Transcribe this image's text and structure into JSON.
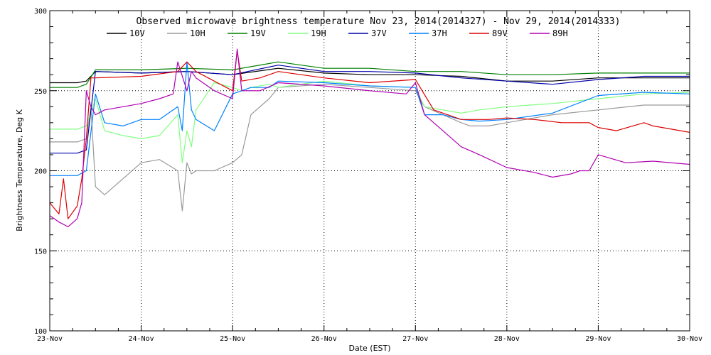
{
  "chart_data": {
    "type": "line",
    "title": "Observed microwave brightness temperature Nov 23, 2014(2014327) - Nov 29, 2014(2014333)",
    "xlabel": "Date (EST)",
    "ylabel": "Brightness Temperature, Deg K",
    "xlim": [
      0,
      7
    ],
    "ylim": [
      100,
      300
    ],
    "grid": true,
    "grid_style": "dotted",
    "legend_position": "top",
    "x_tick_values": [
      0,
      1,
      2,
      3,
      4,
      5,
      6,
      7
    ],
    "x_tick_labels": [
      "23-Nov",
      "24-Nov",
      "25-Nov",
      "26-Nov",
      "27-Nov",
      "28-Nov",
      "29-Nov",
      "30-Nov"
    ],
    "y_tick_values": [
      100,
      150,
      200,
      250,
      300
    ],
    "y_tick_labels": [
      "100",
      "150",
      "200",
      "250",
      "300"
    ],
    "series": [
      {
        "name": "10V",
        "color": "#000000",
        "x": [
          0,
          0.3,
          0.4,
          0.5,
          1.0,
          1.5,
          2.0,
          2.5,
          3.0,
          3.5,
          4.0,
          4.5,
          5.0,
          5.5,
          6.0,
          6.5,
          7.0
        ],
        "values": [
          255,
          255,
          256,
          262,
          261,
          262,
          260,
          264,
          261,
          260,
          260,
          259,
          256,
          256,
          258,
          258,
          258
        ]
      },
      {
        "name": "10H",
        "color": "#999999",
        "x": [
          0,
          0.3,
          0.4,
          0.45,
          0.5,
          0.6,
          0.8,
          1.0,
          1.2,
          1.4,
          1.45,
          1.5,
          1.55,
          1.6,
          1.8,
          2.0,
          2.1,
          2.2,
          2.4,
          2.5,
          3.0,
          3.5,
          4.0,
          4.1,
          4.3,
          4.5,
          4.6,
          4.8,
          5.0,
          5.5,
          6.0,
          6.5,
          7.0
        ],
        "values": [
          218,
          218,
          220,
          240,
          190,
          185,
          195,
          205,
          207,
          200,
          175,
          205,
          198,
          200,
          200,
          205,
          210,
          235,
          245,
          252,
          254,
          252,
          250,
          240,
          235,
          230,
          228,
          228,
          230,
          235,
          238,
          241,
          241
        ]
      },
      {
        "name": "19V",
        "color": "#008000",
        "x": [
          0,
          0.3,
          0.4,
          0.5,
          1.0,
          1.5,
          2.0,
          2.5,
          3.0,
          3.5,
          4.0,
          4.5,
          5.0,
          5.5,
          6.0,
          6.5,
          7.0
        ],
        "values": [
          252,
          252,
          254,
          263,
          263,
          264,
          263,
          268,
          264,
          264,
          262,
          262,
          260,
          260,
          261,
          261,
          261
        ]
      },
      {
        "name": "19H",
        "color": "#80ff80",
        "x": [
          0,
          0.3,
          0.4,
          0.5,
          0.6,
          0.8,
          1.0,
          1.2,
          1.4,
          1.45,
          1.5,
          1.55,
          1.6,
          1.8,
          2.0,
          2.1,
          2.2,
          2.4,
          2.5,
          3.0,
          3.5,
          4.0,
          4.1,
          4.3,
          4.5,
          4.7,
          5.0,
          5.5,
          6.0,
          6.5,
          7.0
        ],
        "values": [
          226,
          226,
          228,
          245,
          225,
          222,
          220,
          222,
          235,
          205,
          225,
          215,
          238,
          255,
          252,
          250,
          252,
          254,
          252,
          256,
          253,
          252,
          240,
          238,
          236,
          238,
          240,
          242,
          245,
          248,
          249
        ]
      },
      {
        "name": "37V",
        "color": "#0000aa",
        "x": [
          0,
          0.3,
          0.4,
          0.5,
          1.0,
          1.5,
          2.0,
          2.5,
          3.0,
          3.5,
          4.0,
          4.5,
          5.0,
          5.5,
          6.0,
          6.5,
          7.0
        ],
        "values": [
          211,
          211,
          213,
          262,
          261,
          262,
          260,
          266,
          262,
          262,
          261,
          258,
          256,
          254,
          257,
          259,
          259
        ]
      },
      {
        "name": "37H",
        "color": "#0080ff",
        "x": [
          0,
          0.3,
          0.4,
          0.5,
          0.6,
          0.8,
          1.0,
          1.2,
          1.4,
          1.45,
          1.5,
          1.55,
          1.6,
          1.8,
          2.0,
          2.1,
          2.2,
          2.4,
          2.5,
          3.0,
          3.5,
          4.0,
          4.1,
          4.3,
          4.5,
          4.7,
          5.0,
          5.5,
          6.0,
          6.5,
          7.0
        ],
        "values": [
          197,
          197,
          200,
          248,
          230,
          228,
          232,
          232,
          240,
          225,
          268,
          238,
          232,
          225,
          248,
          250,
          252,
          252,
          256,
          255,
          253,
          252,
          235,
          235,
          232,
          231,
          232,
          236,
          247,
          249,
          248
        ]
      },
      {
        "name": "89V",
        "color": "#dd0000",
        "x": [
          0,
          0.1,
          0.15,
          0.2,
          0.3,
          0.35,
          0.4,
          0.45,
          0.5,
          1.0,
          1.4,
          1.5,
          1.6,
          2.0,
          2.05,
          2.1,
          2.3,
          2.5,
          3.0,
          3.5,
          4.0,
          4.2,
          4.5,
          4.8,
          5.0,
          5.3,
          5.6,
          5.9,
          6.0,
          6.2,
          6.5,
          6.6,
          7.0
        ],
        "values": [
          180,
          173,
          195,
          170,
          178,
          195,
          220,
          258,
          258,
          259,
          262,
          268,
          262,
          250,
          275,
          256,
          258,
          262,
          258,
          255,
          257,
          238,
          232,
          232,
          233,
          232,
          230,
          230,
          227,
          225,
          230,
          228,
          224
        ]
      },
      {
        "name": "89H",
        "color": "#b000b0",
        "x": [
          0,
          0.1,
          0.2,
          0.3,
          0.35,
          0.4,
          0.45,
          0.5,
          0.6,
          0.8,
          1.0,
          1.2,
          1.35,
          1.4,
          1.5,
          1.55,
          1.6,
          1.8,
          2.0,
          2.05,
          2.1,
          2.3,
          2.5,
          3.0,
          3.5,
          3.9,
          4.0,
          4.1,
          4.3,
          4.5,
          4.7,
          5.0,
          5.3,
          5.5,
          5.7,
          5.8,
          5.9,
          6.0,
          6.3,
          6.6,
          7.0
        ],
        "values": [
          172,
          168,
          165,
          170,
          180,
          250,
          240,
          235,
          238,
          240,
          242,
          245,
          248,
          268,
          250,
          262,
          258,
          250,
          245,
          276,
          250,
          250,
          255,
          253,
          250,
          248,
          255,
          235,
          225,
          215,
          210,
          202,
          199,
          196,
          198,
          200,
          200,
          210,
          205,
          206,
          204
        ]
      }
    ]
  }
}
